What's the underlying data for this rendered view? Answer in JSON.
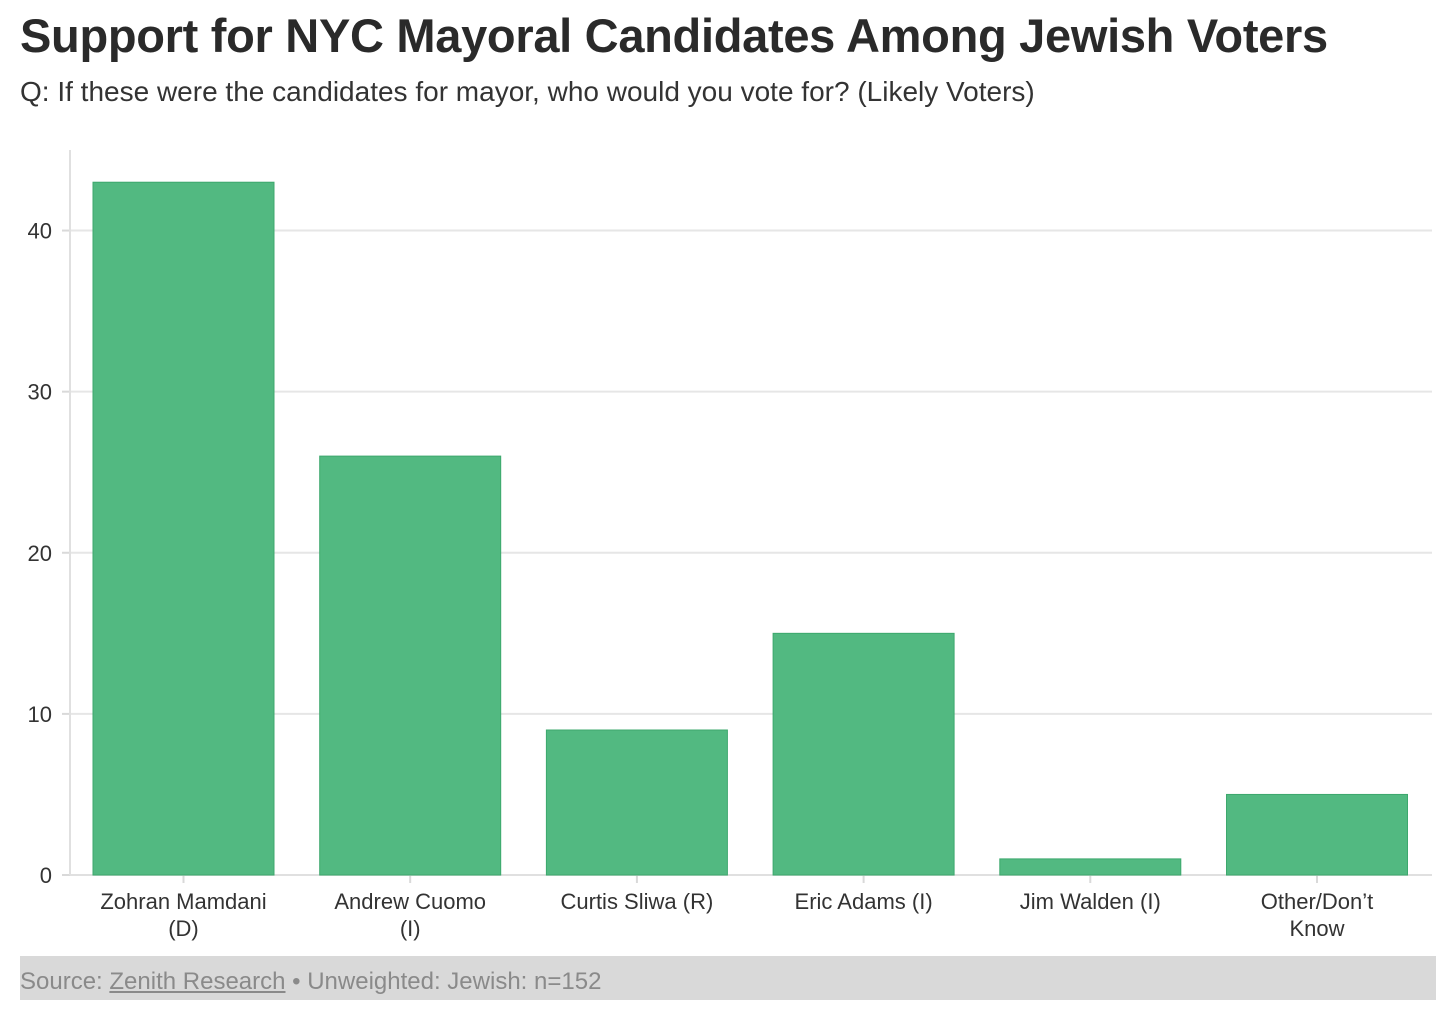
{
  "chart_data": {
    "type": "bar",
    "title": "Support for NYC Mayoral Candidates Among Jewish Voters",
    "subtitle": "Q: If these were the candidates for mayor, who would you vote for? (Likely Voters)",
    "categories": [
      [
        "Zohran Mamdani",
        "(D)"
      ],
      [
        "Andrew Cuomo",
        "(I)"
      ],
      [
        "Curtis Sliwa (R)"
      ],
      [
        "Eric Adams (I)"
      ],
      [
        "Jim Walden (I)"
      ],
      [
        "Other/Don’t",
        "Know"
      ]
    ],
    "values": [
      43,
      26,
      9,
      15,
      1,
      5
    ],
    "yticks": [
      0,
      10,
      20,
      30,
      40
    ],
    "ylim": [
      0,
      45
    ],
    "xlabel": "",
    "ylabel": "",
    "grid": true,
    "bar_color": "#52b981"
  },
  "source": {
    "prefix": "Source: ",
    "link": "Zenith Research",
    "suffix": " • Unweighted: Jewish: n=152"
  }
}
